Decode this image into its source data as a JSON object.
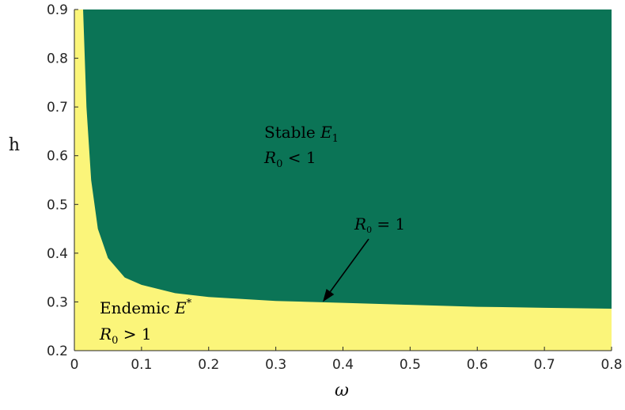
{
  "chart_data": {
    "type": "heatmap",
    "xlabel": "ω",
    "ylabel": "h",
    "xlim": [
      0,
      0.8
    ],
    "ylim": [
      0.2,
      0.9
    ],
    "x_ticks": [
      "0",
      "0.1",
      "0.2",
      "0.3",
      "0.4",
      "0.5",
      "0.6",
      "0.7",
      "0.8"
    ],
    "y_ticks": [
      "0.2",
      "0.3",
      "0.4",
      "0.5",
      "0.6",
      "0.7",
      "0.8",
      "0.9"
    ],
    "boundary": {
      "label": "R₀ = 1",
      "x": [
        0.013,
        0.018,
        0.025,
        0.035,
        0.05,
        0.075,
        0.1,
        0.15,
        0.2,
        0.3,
        0.4,
        0.5,
        0.6,
        0.7,
        0.8
      ],
      "h": [
        0.9,
        0.7,
        0.55,
        0.45,
        0.39,
        0.35,
        0.335,
        0.318,
        0.31,
        0.302,
        0.298,
        0.294,
        0.29,
        0.288,
        0.286
      ]
    },
    "regions": [
      {
        "id": "stable",
        "line1_text": "Stable ",
        "line1_math": "E",
        "line1_sub": "1",
        "line2_math": "R",
        "line2_sub": "0",
        "line2_rest": " < 1",
        "color": "#0b7456"
      },
      {
        "id": "endemic",
        "line1_text": "Endemic ",
        "line1_math": "E",
        "line1_sup": "*",
        "line2_math": "R",
        "line2_sub": "0",
        "line2_rest": " > 1",
        "color": "#fbf57a"
      }
    ],
    "annotation": {
      "math": "R",
      "sub": "0",
      "rest": " = 1",
      "points_to": [
        0.37,
        0.3
      ]
    },
    "grid": false
  }
}
